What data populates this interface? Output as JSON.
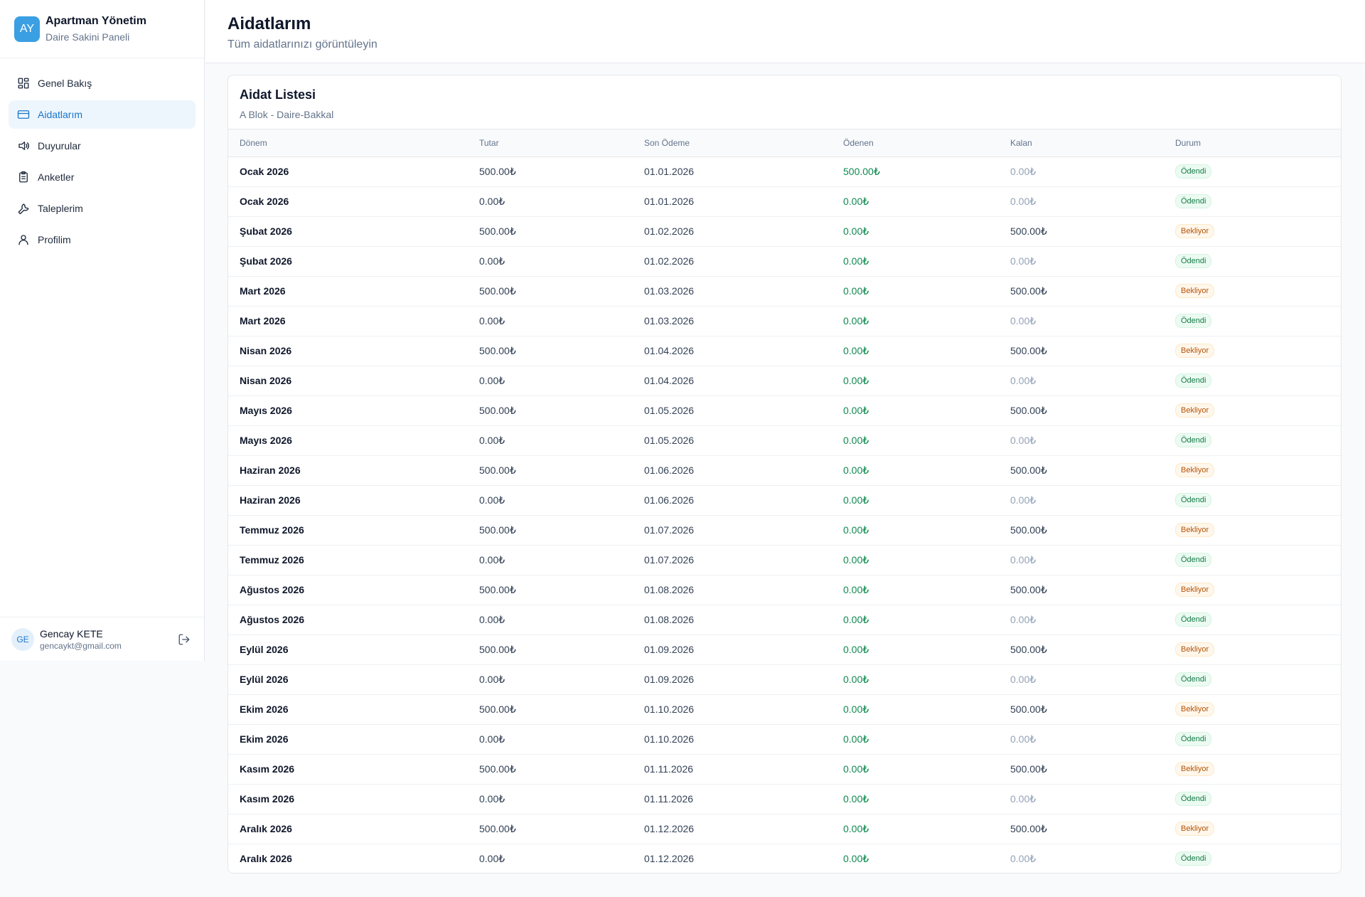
{
  "brand": {
    "initials": "AY",
    "title": "Apartman Yönetim",
    "subtitle": "Daire Sakini Paneli"
  },
  "nav": [
    {
      "label": "Genel Bakış",
      "icon": "dashboard-icon",
      "active": false
    },
    {
      "label": "Aidatlarım",
      "icon": "credit-card-icon",
      "active": true
    },
    {
      "label": "Duyurular",
      "icon": "megaphone-icon",
      "active": false
    },
    {
      "label": "Anketler",
      "icon": "clipboard-icon",
      "active": false
    },
    {
      "label": "Taleplerim",
      "icon": "wrench-icon",
      "active": false
    },
    {
      "label": "Profilim",
      "icon": "user-icon",
      "active": false
    }
  ],
  "user": {
    "initials": "GE",
    "name": "Gencay KETE",
    "email": "gencaykt@gmail.com"
  },
  "header": {
    "title": "Aidatlarım",
    "subtitle": "Tüm aidatlarınızı görüntüleyin"
  },
  "card": {
    "title": "Aidat Listesi",
    "subtitle": "A Blok - Daire-Bakkal"
  },
  "table": {
    "columns": [
      "Dönem",
      "Tutar",
      "Son Ödeme",
      "Ödenen",
      "Kalan",
      "Durum"
    ],
    "rows": [
      {
        "period": "Ocak 2026",
        "amount": "500.00₺",
        "due": "01.01.2026",
        "paid": "500.00₺",
        "remaining": "0.00₺",
        "status": "Ödendi",
        "state": "ok"
      },
      {
        "period": "Ocak 2026",
        "amount": "0.00₺",
        "due": "01.01.2026",
        "paid": "0.00₺",
        "remaining": "0.00₺",
        "status": "Ödendi",
        "state": "ok"
      },
      {
        "period": "Şubat 2026",
        "amount": "500.00₺",
        "due": "01.02.2026",
        "paid": "0.00₺",
        "remaining": "500.00₺",
        "status": "Bekliyor",
        "state": "wait"
      },
      {
        "period": "Şubat 2026",
        "amount": "0.00₺",
        "due": "01.02.2026",
        "paid": "0.00₺",
        "remaining": "0.00₺",
        "status": "Ödendi",
        "state": "ok"
      },
      {
        "period": "Mart 2026",
        "amount": "500.00₺",
        "due": "01.03.2026",
        "paid": "0.00₺",
        "remaining": "500.00₺",
        "status": "Bekliyor",
        "state": "wait"
      },
      {
        "period": "Mart 2026",
        "amount": "0.00₺",
        "due": "01.03.2026",
        "paid": "0.00₺",
        "remaining": "0.00₺",
        "status": "Ödendi",
        "state": "ok"
      },
      {
        "period": "Nisan 2026",
        "amount": "500.00₺",
        "due": "01.04.2026",
        "paid": "0.00₺",
        "remaining": "500.00₺",
        "status": "Bekliyor",
        "state": "wait"
      },
      {
        "period": "Nisan 2026",
        "amount": "0.00₺",
        "due": "01.04.2026",
        "paid": "0.00₺",
        "remaining": "0.00₺",
        "status": "Ödendi",
        "state": "ok"
      },
      {
        "period": "Mayıs 2026",
        "amount": "500.00₺",
        "due": "01.05.2026",
        "paid": "0.00₺",
        "remaining": "500.00₺",
        "status": "Bekliyor",
        "state": "wait"
      },
      {
        "period": "Mayıs 2026",
        "amount": "0.00₺",
        "due": "01.05.2026",
        "paid": "0.00₺",
        "remaining": "0.00₺",
        "status": "Ödendi",
        "state": "ok"
      },
      {
        "period": "Haziran 2026",
        "amount": "500.00₺",
        "due": "01.06.2026",
        "paid": "0.00₺",
        "remaining": "500.00₺",
        "status": "Bekliyor",
        "state": "wait"
      },
      {
        "period": "Haziran 2026",
        "amount": "0.00₺",
        "due": "01.06.2026",
        "paid": "0.00₺",
        "remaining": "0.00₺",
        "status": "Ödendi",
        "state": "ok"
      },
      {
        "period": "Temmuz 2026",
        "amount": "500.00₺",
        "due": "01.07.2026",
        "paid": "0.00₺",
        "remaining": "500.00₺",
        "status": "Bekliyor",
        "state": "wait"
      },
      {
        "period": "Temmuz 2026",
        "amount": "0.00₺",
        "due": "01.07.2026",
        "paid": "0.00₺",
        "remaining": "0.00₺",
        "status": "Ödendi",
        "state": "ok"
      },
      {
        "period": "Ağustos 2026",
        "amount": "500.00₺",
        "due": "01.08.2026",
        "paid": "0.00₺",
        "remaining": "500.00₺",
        "status": "Bekliyor",
        "state": "wait"
      },
      {
        "period": "Ağustos 2026",
        "amount": "0.00₺",
        "due": "01.08.2026",
        "paid": "0.00₺",
        "remaining": "0.00₺",
        "status": "Ödendi",
        "state": "ok"
      },
      {
        "period": "Eylül 2026",
        "amount": "500.00₺",
        "due": "01.09.2026",
        "paid": "0.00₺",
        "remaining": "500.00₺",
        "status": "Bekliyor",
        "state": "wait"
      },
      {
        "period": "Eylül 2026",
        "amount": "0.00₺",
        "due": "01.09.2026",
        "paid": "0.00₺",
        "remaining": "0.00₺",
        "status": "Ödendi",
        "state": "ok"
      },
      {
        "period": "Ekim 2026",
        "amount": "500.00₺",
        "due": "01.10.2026",
        "paid": "0.00₺",
        "remaining": "500.00₺",
        "status": "Bekliyor",
        "state": "wait"
      },
      {
        "period": "Ekim 2026",
        "amount": "0.00₺",
        "due": "01.10.2026",
        "paid": "0.00₺",
        "remaining": "0.00₺",
        "status": "Ödendi",
        "state": "ok"
      },
      {
        "period": "Kasım 2026",
        "amount": "500.00₺",
        "due": "01.11.2026",
        "paid": "0.00₺",
        "remaining": "500.00₺",
        "status": "Bekliyor",
        "state": "wait"
      },
      {
        "period": "Kasım 2026",
        "amount": "0.00₺",
        "due": "01.11.2026",
        "paid": "0.00₺",
        "remaining": "0.00₺",
        "status": "Ödendi",
        "state": "ok"
      },
      {
        "period": "Aralık 2026",
        "amount": "500.00₺",
        "due": "01.12.2026",
        "paid": "0.00₺",
        "remaining": "500.00₺",
        "status": "Bekliyor",
        "state": "wait"
      },
      {
        "period": "Aralık 2026",
        "amount": "0.00₺",
        "due": "01.12.2026",
        "paid": "0.00₺",
        "remaining": "0.00₺",
        "status": "Ödendi",
        "state": "ok"
      }
    ]
  },
  "colors": {
    "accent": "#3b9fe3",
    "paid": "#0f8a4f",
    "pending": "#b45309"
  }
}
